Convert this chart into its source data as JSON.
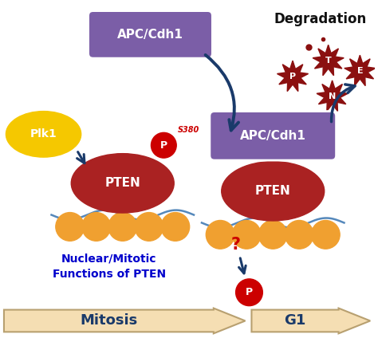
{
  "bg_color": "#ffffff",
  "apc_box_color": "#7b5ea7",
  "apc_text": "APC/Cdh1",
  "apc_text_color": "#ffffff",
  "pten_color": "#aa2222",
  "pten_text": "PTEN",
  "pten_text_color": "#ffffff",
  "plk1_color": "#f5c800",
  "plk1_text": "Plk1",
  "plk1_text_color": "#ffffff",
  "membrane_color": "#f0a030",
  "wave_color": "#5588bb",
  "arrow_color": "#1a3a6a",
  "phospho_color": "#cc0000",
  "phospho_text_color": "#ffffff",
  "degradation_text": "Degradation",
  "degradation_color": "#111111",
  "nuclear_text": "Nuclear/Mitotic\nFunctions of PTEN",
  "nuclear_text_color": "#0000cc",
  "mitosis_text": "Mitosis",
  "g1_text": "G1",
  "arrow_bar_color": "#f5deb3",
  "arrow_bar_outline": "#b8a070",
  "s380_text": "S380",
  "s380_color": "#cc0000",
  "deg_burst_color": "#8b1010",
  "question_color": "#cc0000"
}
